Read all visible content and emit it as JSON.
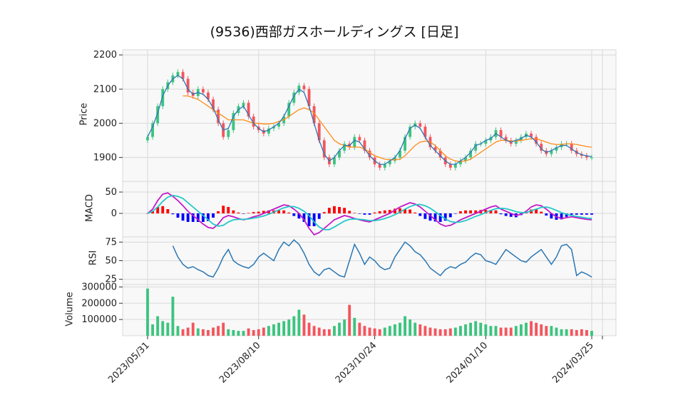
{
  "chart_data": {
    "type": "candlestick",
    "title": "(9536)西部ガスホールディングス [日足]",
    "x_ticks": [
      "2023/05/31",
      "2023/08/10",
      "2023/10/24",
      "2024/01/10",
      "2024/03/25"
    ],
    "panels": [
      {
        "name": "price",
        "ylabel": "Price",
        "ylim": [
          1830,
          2215
        ],
        "yticks": [
          1900,
          2000,
          2100,
          2200
        ],
        "series": [
          {
            "name": "close_approx",
            "values": [
              1960,
              2000,
              2050,
              2100,
              2120,
              2140,
              2150,
              2130,
              2090,
              2080,
              2100,
              2090,
              2070,
              2040,
              2000,
              1960,
              1980,
              2030,
              2050,
              2060,
              2020,
              1990,
              1980,
              1970,
              1985,
              1990,
              2000,
              2020,
              2060,
              2090,
              2110,
              2100,
              2050,
              2000,
              1950,
              1900,
              1880,
              1900,
              1920,
              1940,
              1930,
              1960,
              1950,
              1920,
              1900,
              1880,
              1870,
              1880,
              1890,
              1900,
              1920,
              1960,
              1990,
              2000,
              1990,
              1960,
              1930,
              1920,
              1900,
              1880,
              1870,
              1880,
              1890,
              1900,
              1920,
              1940,
              1940,
              1950,
              1960,
              1980,
              1960,
              1950,
              1940,
              1950,
              1960,
              1970,
              1960,
              1940,
              1920,
              1910,
              1920,
              1930,
              1940,
              1940,
              1920,
              1910,
              1905,
              1900,
              1900
            ]
          },
          {
            "name": "ma_short",
            "values": [
              1960,
              1990,
              2030,
              2080,
              2110,
              2130,
              2140,
              2130,
              2100,
              2085,
              2090,
              2085,
              2070,
              2045,
              2010,
              1980,
              1985,
              2020,
              2040,
              2050,
              2025,
              2000,
              1985,
              1975,
              1980,
              1990,
              2000,
              2020,
              2050,
              2080,
              2100,
              2090,
              2050,
              2000,
              1950,
              1910,
              1890,
              1900,
              1920,
              1935,
              1935,
              1950,
              1945,
              1925,
              1905,
              1890,
              1880,
              1880,
              1890,
              1900,
              1920,
              1955,
              1985,
              1995,
              1985,
              1960,
              1935,
              1920,
              1905,
              1890,
              1880,
              1880,
              1890,
              1900,
              1915,
              1935,
              1940,
              1950,
              1955,
              1970,
              1960,
              1950,
              1945,
              1950,
              1955,
              1965,
              1960,
              1945,
              1925,
              1915,
              1920,
              1928,
              1935,
              1935,
              1925,
              1915,
              1908,
              1905,
              1902
            ]
          },
          {
            "name": "ma_long",
            "values": [
              null,
              null,
              null,
              null,
              null,
              null,
              null,
              2080,
              2080,
              2075,
              2070,
              2060,
              2050,
              2040,
              2030,
              2020,
              2010,
              2010,
              2010,
              2010,
              2005,
              2000,
              2000,
              1998,
              1998,
              2000,
              2005,
              2010,
              2020,
              2030,
              2040,
              2045,
              2040,
              2030,
              2010,
              1990,
              1970,
              1950,
              1940,
              1935,
              1930,
              1930,
              1930,
              1925,
              1915,
              1905,
              1900,
              1895,
              1893,
              1893,
              1895,
              1905,
              1920,
              1935,
              1945,
              1948,
              1945,
              1935,
              1920,
              1905,
              1895,
              1890,
              1888,
              1890,
              1895,
              1905,
              1915,
              1925,
              1935,
              1945,
              1950,
              1950,
              1948,
              1948,
              1950,
              1952,
              1955,
              1955,
              1950,
              1945,
              1940,
              1938,
              1938,
              1940,
              1940,
              1938,
              1935,
              1932,
              1930
            ]
          }
        ]
      },
      {
        "name": "macd",
        "ylabel": "MACD",
        "ylim": [
          -55,
          75
        ],
        "yticks": [
          0,
          50
        ],
        "series": [
          {
            "name": "macd",
            "values": [
              0,
              10,
              30,
              45,
              48,
              40,
              30,
              18,
              5,
              -5,
              -15,
              -25,
              -33,
              -35,
              -25,
              -10,
              -5,
              -8,
              -12,
              -15,
              -12,
              -8,
              -5,
              0,
              5,
              10,
              15,
              20,
              18,
              10,
              0,
              -15,
              -35,
              -50,
              -45,
              -35,
              -25,
              -15,
              -10,
              -5,
              -8,
              -12,
              -15,
              -18,
              -20,
              -15,
              -10,
              -5,
              0,
              8,
              15,
              20,
              25,
              22,
              15,
              5,
              -5,
              -15,
              -25,
              -30,
              -28,
              -22,
              -15,
              -10,
              -5,
              0,
              5,
              10,
              15,
              18,
              10,
              5,
              0,
              -5,
              -2,
              5,
              15,
              20,
              18,
              10,
              0,
              -8,
              -12,
              -10,
              -8,
              -10,
              -12,
              -14,
              -15
            ]
          },
          {
            "name": "signal",
            "values": [
              0,
              5,
              15,
              28,
              38,
              42,
              40,
              35,
              25,
              15,
              5,
              -5,
              -15,
              -25,
              -30,
              -28,
              -20,
              -15,
              -14,
              -14,
              -13,
              -11,
              -9,
              -6,
              -2,
              3,
              8,
              13,
              16,
              16,
              12,
              5,
              -5,
              -20,
              -32,
              -38,
              -38,
              -32,
              -25,
              -18,
              -14,
              -13,
              -14,
              -15,
              -17,
              -17,
              -15,
              -12,
              -8,
              -3,
              3,
              10,
              16,
              20,
              21,
              18,
              12,
              4,
              -5,
              -13,
              -19,
              -21,
              -20,
              -17,
              -12,
              -7,
              -3,
              2,
              7,
              11,
              12,
              11,
              8,
              4,
              2,
              2,
              6,
              10,
              14,
              15,
              12,
              7,
              2,
              -2,
              -5,
              -7,
              -9,
              -11,
              -12
            ]
          }
        ],
        "histogram": [
          0,
          5,
          15,
          17,
          10,
          -2,
          -10,
          -17,
          -20,
          -20,
          -20,
          -20,
          -18,
          -10,
          5,
          18,
          15,
          7,
          2,
          -1,
          1,
          3,
          4,
          6,
          7,
          7,
          7,
          7,
          2,
          -6,
          -12,
          -20,
          -30,
          -30,
          -13,
          3,
          13,
          17,
          15,
          13,
          6,
          1,
          -1,
          -3,
          -3,
          2,
          5,
          7,
          8,
          11,
          12,
          10,
          9,
          2,
          -6,
          -13,
          -17,
          -19,
          -20,
          -17,
          -9,
          -1,
          5,
          7,
          7,
          7,
          8,
          8,
          8,
          7,
          -2,
          -6,
          -8,
          -9,
          -4,
          3,
          9,
          10,
          4,
          -5,
          -12,
          -15,
          -14,
          -8,
          -3,
          -3,
          -3,
          -3,
          -3
        ]
      },
      {
        "name": "rsi",
        "ylabel": "RSI",
        "ylim": [
          18,
          82
        ],
        "yticks": [
          25,
          50,
          75
        ],
        "series": [
          {
            "name": "rsi",
            "values": [
              null,
              null,
              null,
              null,
              null,
              70,
              55,
              45,
              40,
              42,
              38,
              35,
              30,
              28,
              40,
              55,
              65,
              50,
              45,
              42,
              40,
              45,
              55,
              60,
              55,
              50,
              65,
              75,
              70,
              78,
              72,
              60,
              45,
              35,
              30,
              38,
              40,
              35,
              30,
              28,
              50,
              72,
              60,
              45,
              55,
              50,
              42,
              38,
              40,
              55,
              65,
              75,
              70,
              62,
              58,
              50,
              40,
              35,
              30,
              38,
              42,
              40,
              45,
              48,
              55,
              60,
              58,
              50,
              48,
              45,
              55,
              65,
              60,
              55,
              50,
              48,
              55,
              60,
              65,
              55,
              45,
              55,
              70,
              72,
              65,
              30,
              35,
              32,
              28
            ]
          }
        ]
      },
      {
        "name": "volume",
        "ylabel": "Volume",
        "ylim": [
          0,
          315000
        ],
        "yticks": [
          100000,
          200000,
          300000
        ],
        "series": [
          {
            "name": "volume",
            "values": [
              290000,
              70000,
              120000,
              90000,
              80000,
              240000,
              60000,
              40000,
              50000,
              80000,
              45000,
              40000,
              35000,
              50000,
              60000,
              80000,
              40000,
              35000,
              30000,
              30000,
              45000,
              35000,
              40000,
              50000,
              60000,
              70000,
              80000,
              90000,
              100000,
              120000,
              160000,
              130000,
              80000,
              60000,
              50000,
              40000,
              40000,
              60000,
              80000,
              100000,
              190000,
              110000,
              80000,
              60000,
              50000,
              45000,
              40000,
              50000,
              60000,
              70000,
              80000,
              120000,
              100000,
              80000,
              70000,
              60000,
              50000,
              45000,
              40000,
              40000,
              45000,
              50000,
              60000,
              70000,
              80000,
              90000,
              80000,
              70000,
              60000,
              60000,
              50000,
              50000,
              50000,
              60000,
              70000,
              80000,
              90000,
              80000,
              70000,
              60000,
              60000,
              50000,
              40000,
              40000,
              40000,
              35000,
              40000,
              35000,
              30000
            ]
          }
        ]
      }
    ],
    "colors": {
      "up": "#3cc47f",
      "down": "#f5555d",
      "ma_short": "#2a77b4",
      "ma_long": "#ff8b17",
      "macd": "#c21ac8",
      "signal": "#23c7c7",
      "hist_up": "#ff0000",
      "hist_down": "#0000ff",
      "rsi": "#2a77b4",
      "grid": "#d9d9d9",
      "panel_bg": "#f8f8f8"
    }
  }
}
